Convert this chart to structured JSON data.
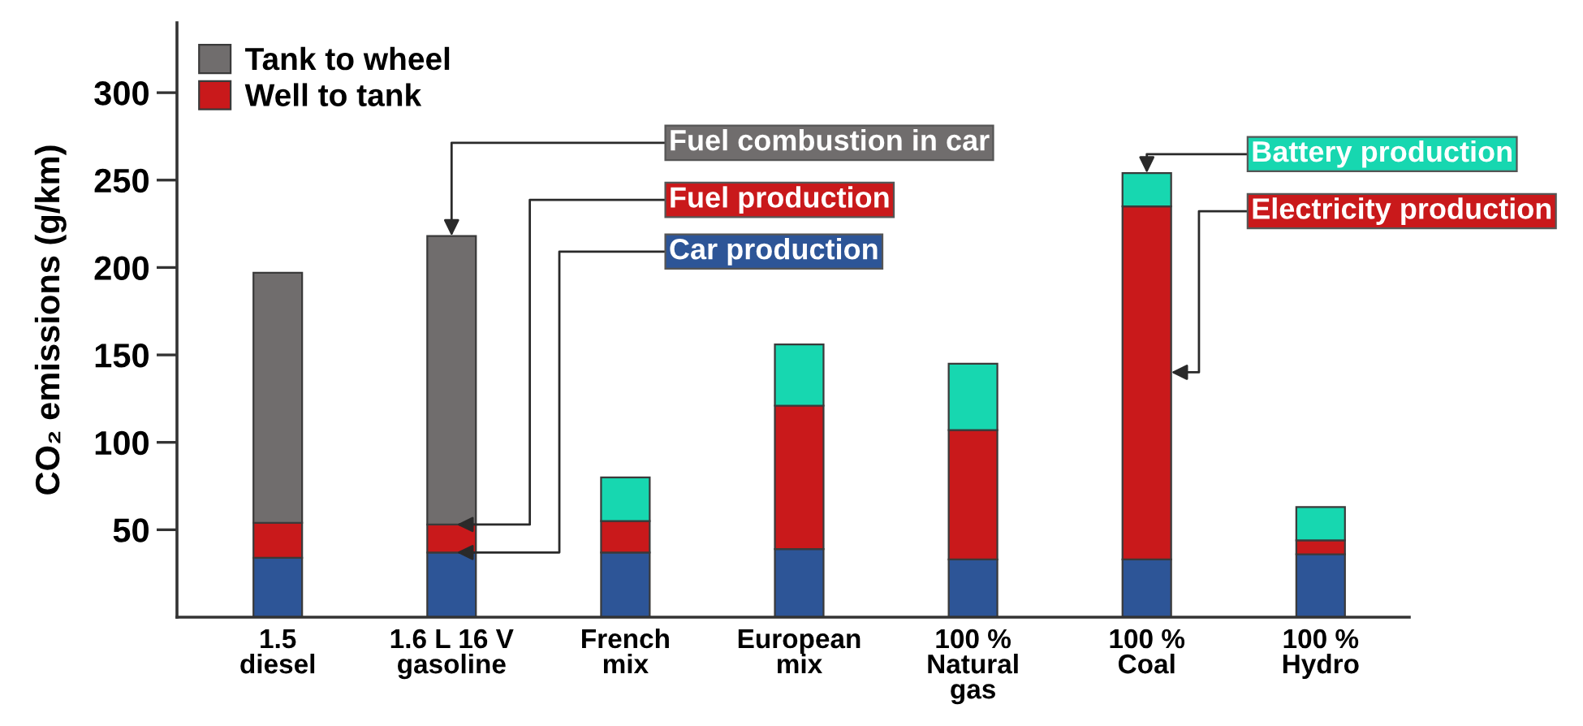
{
  "chart_data": {
    "type": "bar",
    "stacked": true,
    "ylabel": "CO₂ emissions (g/km)",
    "categories": [
      "1.5\ndiesel",
      "1.6 L 16 V\ngasoline",
      "French\nmix",
      "European\nmix",
      "100 %\nNatural\ngas",
      "100 %\nCoal",
      "100 %\nHydro"
    ],
    "series": [
      {
        "color": "#2d5597",
        "values": [
          34,
          37,
          37,
          39,
          33,
          33,
          36
        ]
      },
      {
        "name": "Well to tank",
        "color": "#c9191b",
        "values": [
          20,
          16,
          18,
          82,
          74,
          202,
          8
        ]
      },
      {
        "name": "Tank to wheel",
        "color": "#706d6d",
        "values": [
          143,
          165,
          null,
          null,
          null,
          null,
          null
        ]
      },
      {
        "color": "#17d7b0",
        "values": [
          null,
          null,
          25,
          35,
          38,
          19,
          19
        ]
      }
    ],
    "ylim": [
      0,
      340
    ],
    "yticks": [
      50,
      100,
      150,
      200,
      250,
      300
    ],
    "legend": "top left",
    "annotations": [
      {
        "text": "Fuel combustion in car",
        "x": "1.6 L 16 V\ngasoline",
        "y": 218
      },
      {
        "text": "Fuel production",
        "x": "1.6 L 16 V\ngasoline",
        "y": 53
      },
      {
        "text": "Car production",
        "x": "1.6 L 16 V\ngasoline",
        "y": 37
      },
      {
        "text": "Battery production",
        "x": "100 %\nCoal",
        "y": 254
      },
      "Electricity production"
    ]
  }
}
